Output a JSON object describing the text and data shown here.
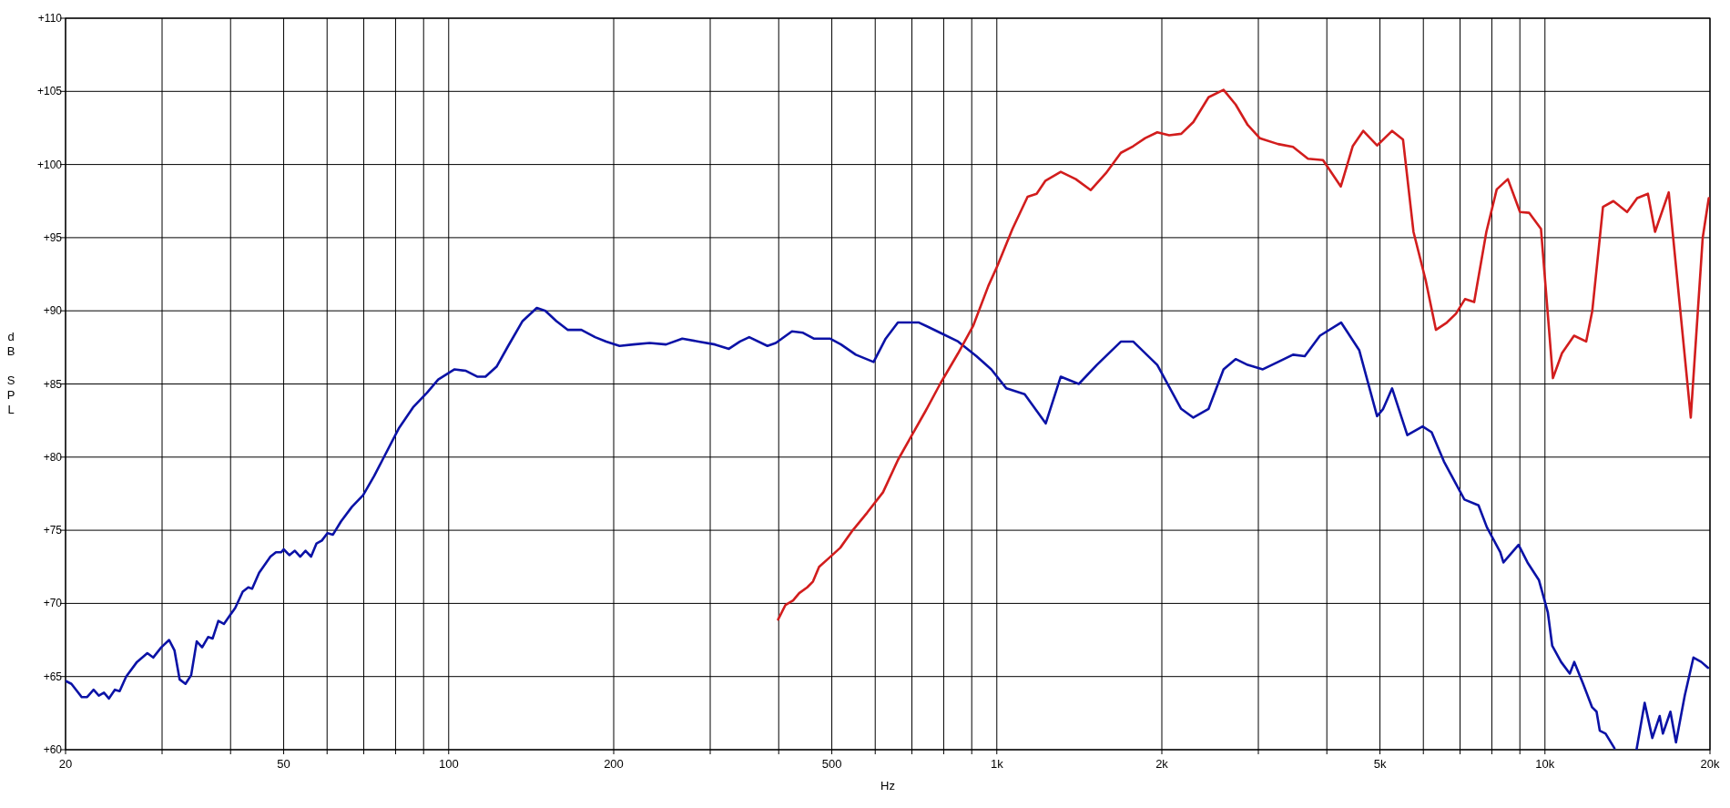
{
  "chart_data": {
    "type": "line",
    "xlabel": "Hz",
    "ylabel": "dB SPL",
    "log": "x",
    "grid": true,
    "marker": "none",
    "line_style": "solid",
    "xlim": [
      20,
      20000
    ],
    "ylim": [
      60,
      110
    ],
    "xticks": [
      20,
      {
        "value": 30,
        "label": null
      },
      {
        "value": 40,
        "label": null
      },
      50,
      {
        "value": 60,
        "label": null
      },
      {
        "value": 70,
        "label": null
      },
      {
        "value": 80,
        "label": null
      },
      {
        "value": 90,
        "label": null
      },
      100,
      200,
      {
        "value": 300,
        "label": null
      },
      {
        "value": 400,
        "label": null
      },
      500,
      {
        "value": 600,
        "label": null
      },
      {
        "value": 700,
        "label": null
      },
      {
        "value": 800,
        "label": null
      },
      {
        "value": 900,
        "label": null
      },
      {
        "value": 1000,
        "label": "1k"
      },
      {
        "value": 2000,
        "label": "2k"
      },
      {
        "value": 3000,
        "label": null
      },
      {
        "value": 4000,
        "label": null
      },
      {
        "value": 5000,
        "label": "5k"
      },
      {
        "value": 6000,
        "label": null
      },
      {
        "value": 7000,
        "label": null
      },
      {
        "value": 8000,
        "label": null
      },
      {
        "value": 9000,
        "label": null
      },
      {
        "value": 10000,
        "label": "10k"
      },
      {
        "value": 20000,
        "label": "20k"
      }
    ],
    "yticks": [
      {
        "value": 60,
        "label": "+60"
      },
      {
        "value": 65,
        "label": "+65"
      },
      {
        "value": 70,
        "label": "+70"
      },
      {
        "value": 75,
        "label": "+75"
      },
      {
        "value": 80,
        "label": "+80"
      },
      {
        "value": 85,
        "label": "+85"
      },
      {
        "value": 90,
        "label": "+90"
      },
      {
        "value": 95,
        "label": "+95"
      },
      {
        "value": 100,
        "label": "+100"
      },
      {
        "value": 105,
        "label": "+105"
      },
      {
        "value": 110,
        "label": "+110"
      }
    ],
    "series": [
      {
        "color": "#0b12a6",
        "x": [
          20,
          20.5,
          21.4,
          21.9,
          22.5,
          23,
          23.5,
          24,
          24.6,
          25.1,
          25.8,
          27,
          28.2,
          28.9,
          29.9,
          30.9,
          31.6,
          32.3,
          33.1,
          33.9,
          34.7,
          35.5,
          36.4,
          37.1,
          38,
          38.9,
          40.8,
          42.1,
          43.1,
          43.8,
          45.1,
          47.3,
          48.4,
          49.5,
          50,
          51.2,
          52.4,
          53.6,
          54.8,
          56.1,
          57.4,
          58.7,
          60.1,
          61.5,
          63.6,
          66.6,
          69.8,
          73.1,
          75.7,
          81.2,
          86.1,
          91.3,
          95.7,
          102.5,
          107.5,
          112.7,
          116.7,
          122.4,
          128.4,
          136.4,
          144.8,
          150.1,
          157.2,
          164.8,
          174.6,
          185,
          193.8,
          205,
          217.3,
          232.6,
          249.2,
          266.8,
          285.7,
          306,
          324.5,
          340,
          353.4,
          381.5,
          395.2,
          422.9,
          443,
          463.4,
          496.1,
          519.6,
          553,
          596,
          627,
          660,
          721,
          788,
          850,
          918,
          977,
          1041,
          1124,
          1228,
          1308,
          1411,
          1522,
          1685,
          1773,
          1962,
          2169,
          2283,
          2434,
          2592,
          2727,
          2869,
          3057,
          3258,
          3470,
          3646,
          3886,
          4247,
          4584,
          4940,
          5068,
          5262,
          5609,
          5981,
          6212,
          6541,
          7129,
          7565,
          7836,
          8288,
          8399,
          8950,
          9293,
          9748,
          10120,
          10310,
          10700,
          11100,
          11310,
          11740,
          12190,
          12420,
          12590,
          12900,
          13390,
          14000,
          14690,
          15200,
          15700,
          16190,
          16410,
          16940,
          17340,
          17990,
          18660,
          19280,
          19830
        ],
        "values": [
          64.7,
          64.5,
          63.6,
          63.6,
          64.1,
          63.7,
          63.9,
          63.5,
          64.1,
          64,
          65,
          66,
          66.6,
          66.3,
          67,
          67.5,
          66.8,
          64.8,
          64.5,
          65.1,
          67.4,
          67,
          67.7,
          67.6,
          68.8,
          68.6,
          69.7,
          70.8,
          71.1,
          71,
          72.1,
          73.2,
          73.5,
          73.5,
          73.7,
          73.3,
          73.6,
          73.2,
          73.6,
          73.2,
          74.1,
          74.3,
          74.8,
          74.7,
          75.6,
          76.6,
          77.4,
          78.7,
          79.8,
          82,
          83.4,
          84.4,
          85.3,
          86,
          85.9,
          85.5,
          85.5,
          86.2,
          87.6,
          89.3,
          90.2,
          90,
          89.3,
          88.7,
          88.7,
          88.2,
          87.9,
          87.6,
          87.7,
          87.8,
          87.7,
          88.1,
          87.9,
          87.7,
          87.4,
          87.9,
          88.2,
          87.6,
          87.8,
          88.6,
          88.5,
          88.1,
          88.1,
          87.7,
          87,
          86.5,
          88.1,
          89.2,
          89.2,
          88.5,
          87.9,
          86.9,
          86,
          84.7,
          84.3,
          82.3,
          85.5,
          85,
          86.3,
          87.9,
          87.9,
          86.3,
          83.3,
          82.7,
          83.3,
          86,
          86.7,
          86.3,
          86,
          86.5,
          87,
          86.9,
          88.3,
          89.2,
          87.3,
          82.8,
          83.3,
          84.7,
          81.5,
          82.1,
          81.7,
          79.7,
          77.1,
          76.7,
          75.2,
          73.5,
          72.8,
          74,
          72.8,
          71.6,
          69.4,
          67.1,
          66,
          65.2,
          66,
          64.5,
          62.9,
          62.6,
          61.3,
          61.1,
          60.1,
          null,
          60,
          63.2,
          60.8,
          62.3,
          61.1,
          62.6,
          60.5,
          63.7,
          66.3,
          66,
          65.6
        ]
      },
      {
        "color": "#d21d1d",
        "x": [
          399,
          411.6,
          425,
          436,
          451,
          462,
          474,
          494,
          518,
          546,
          580,
          620,
          660,
          694,
          740,
          788,
          850,
          906,
          965,
          1003,
          1068,
          1138,
          1182,
          1227,
          1308,
          1393,
          1484,
          1581,
          1684,
          1773,
          1865,
          1962,
          2063,
          2170,
          2283,
          2434,
          2592,
          2727,
          2869,
          3018,
          3258,
          3470,
          3695,
          3936,
          4242,
          4459,
          4660,
          4940,
          5262,
          5509,
          5756,
          6058,
          6325,
          6623,
          6880,
          7146,
          7428,
          7818,
          8166,
          8557,
          9005,
          9354,
          9834,
          10340,
          10740,
          11300,
          11890,
          12200,
          12760,
          13330,
          14120,
          14730,
          15410,
          15880,
          16820,
          18450,
          19400,
          19900
        ],
        "values": [
          68.9,
          69.9,
          70.2,
          70.7,
          71.1,
          71.5,
          72.5,
          73.1,
          73.8,
          75,
          76.2,
          77.6,
          79.8,
          81.25,
          83.1,
          85,
          87.1,
          89,
          91.7,
          93.1,
          95.6,
          97.8,
          98,
          98.9,
          99.5,
          99,
          98.25,
          99.4,
          100.8,
          101.25,
          101.8,
          102.2,
          102,
          102.1,
          102.9,
          104.6,
          105.1,
          104.1,
          102.7,
          101.8,
          101.4,
          101.2,
          100.4,
          100.3,
          98.5,
          101.25,
          102.3,
          101.3,
          102.3,
          101.7,
          95.4,
          92.1,
          88.7,
          89.2,
          89.8,
          90.8,
          90.6,
          95.4,
          98.3,
          99,
          96.75,
          96.7,
          95.6,
          85.4,
          87.1,
          88.3,
          87.9,
          90,
          97.1,
          97.5,
          96.75,
          97.7,
          98,
          95.4,
          98.1,
          82.7,
          95,
          97.7
        ]
      }
    ]
  }
}
